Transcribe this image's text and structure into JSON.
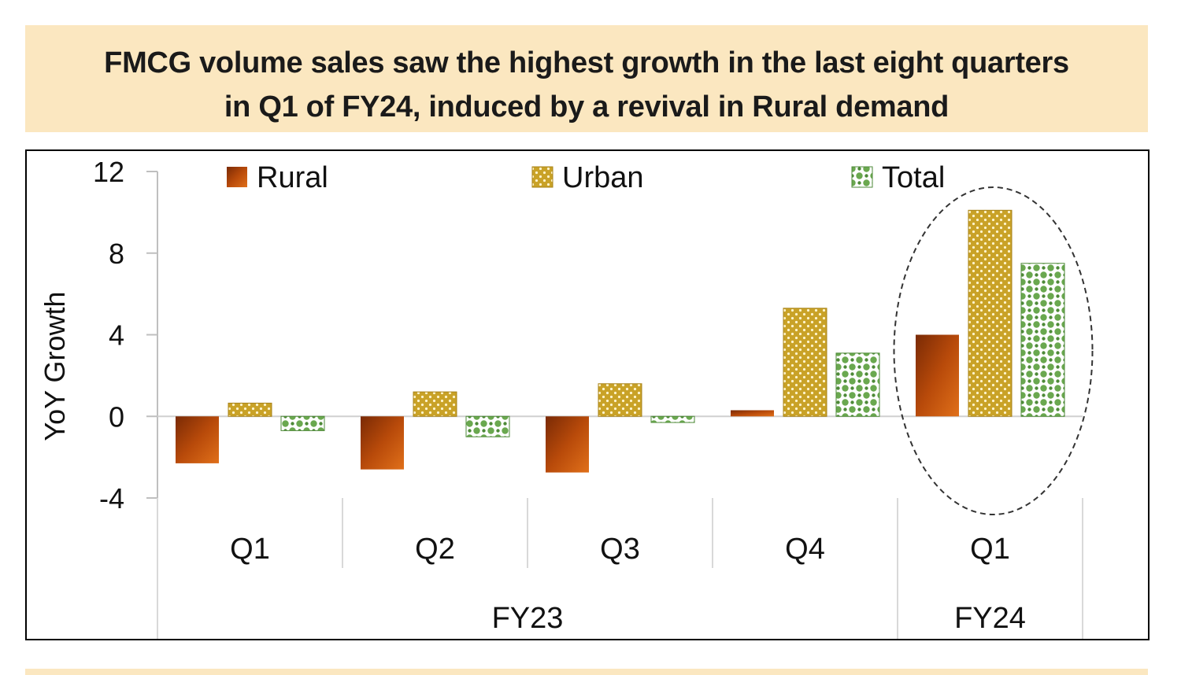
{
  "title": {
    "line1": "FMCG volume sales saw the highest growth in the last eight quarters",
    "line2": "in Q1 of FY24, induced by a revival in Rural demand"
  },
  "chart_data": {
    "type": "bar",
    "categories": [
      "Q1",
      "Q2",
      "Q3",
      "Q4",
      "Q1"
    ],
    "groups": [
      {
        "label": "FY23",
        "span": 4
      },
      {
        "label": "FY24",
        "span": 1
      }
    ],
    "series": [
      {
        "name": "Rural",
        "values": [
          -2.3,
          -2.6,
          -2.75,
          0.3,
          4.0
        ]
      },
      {
        "name": "Urban",
        "values": [
          0.65,
          1.2,
          1.6,
          5.3,
          10.1
        ]
      },
      {
        "name": "Total",
        "values": [
          -0.7,
          -1.0,
          -0.3,
          3.1,
          7.5
        ]
      }
    ],
    "ylabel": "YoY Growth",
    "yticks": [
      -4,
      0,
      4,
      8,
      12
    ],
    "ylim": [
      -4,
      12
    ],
    "legend_position": "top",
    "highlight": "dashed ellipse around FY24 Q1",
    "colors": {
      "Rural": "#c0500a",
      "Urban": "#c9a227",
      "Total": "#6aa84f"
    }
  }
}
